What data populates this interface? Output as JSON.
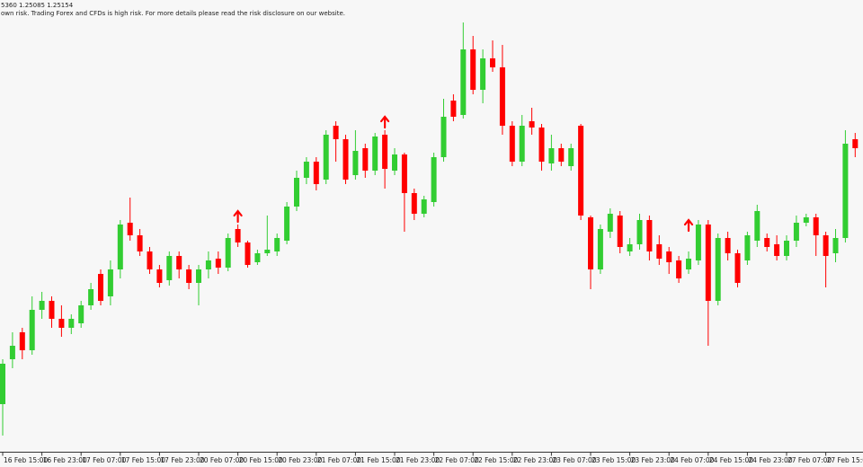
{
  "header_lines": [
    "5360 1.25085 1.25154",
    "own risk. Trading Forex and CFDs is high risk. For more details please read the risk disclosure on our website."
  ],
  "chart_data": {
    "type": "candlestick",
    "up_color": "#32cd32",
    "down_color": "#ff0000",
    "arrow_color": "#ff0000",
    "ylim": [
      1.22,
      1.27
    ],
    "categories": [
      "16 Feb 15:00",
      null,
      null,
      null,
      "16 Feb 23:00",
      null,
      null,
      null,
      "17 Feb 07:00",
      null,
      null,
      null,
      "17 Feb 15:00",
      null,
      null,
      null,
      "17 Feb 23:00",
      null,
      null,
      null,
      "20 Feb 07:00",
      null,
      null,
      null,
      "20 Feb 15:00",
      null,
      null,
      null,
      "20 Feb 23:00",
      null,
      null,
      null,
      "21 Feb 07:00",
      null,
      null,
      null,
      "21 Feb 15:00",
      null,
      null,
      null,
      "21 Feb 23:00",
      null,
      null,
      null,
      "22 Feb 07:00",
      null,
      null,
      null,
      "22 Feb 15:00",
      null,
      null,
      null,
      "22 Feb 23:00",
      null,
      null,
      null,
      "23 Feb 07:00",
      null,
      null,
      null,
      "23 Feb 15:00",
      null,
      null,
      null,
      "23 Feb 23:00",
      null,
      null,
      null,
      "24 Feb 07:00",
      null,
      null,
      null,
      "24 Feb 15:00",
      null,
      null,
      null,
      "24 Feb 23:00",
      null,
      null,
      null,
      "27 Feb 07:00",
      null,
      null,
      null,
      "27 Feb 15:00",
      null,
      null,
      null
    ],
    "open": [
      1.225,
      1.23,
      1.233,
      1.231,
      1.2355,
      1.2365,
      1.2345,
      1.2335,
      1.234,
      1.236,
      1.2395,
      1.237,
      1.24,
      1.2452,
      1.2438,
      1.242,
      1.24,
      1.2388,
      1.2415,
      1.24,
      1.2385,
      1.24,
      1.2412,
      1.2402,
      1.2445,
      1.243,
      1.2408,
      1.2418,
      1.242,
      1.2432,
      1.247,
      1.2502,
      1.252,
      1.25,
      1.256,
      1.2545,
      1.2505,
      1.2535,
      1.251,
      1.255,
      1.251,
      1.2528,
      1.2485,
      1.2462,
      1.2475,
      1.2525,
      1.2588,
      1.2572,
      1.2645,
      1.26,
      1.2635,
      1.2625,
      1.256,
      1.252,
      1.2565,
      1.2558,
      1.2518,
      1.2535,
      1.2515,
      1.256,
      1.2458,
      1.24,
      1.2442,
      1.246,
      1.242,
      1.2428,
      1.2455,
      1.2428,
      1.242,
      1.241,
      1.24,
      1.241,
      1.245,
      1.2365,
      1.2435,
      1.2418,
      1.241,
      1.2432,
      1.2435,
      1.2428,
      1.2415,
      1.2432,
      1.2452,
      1.2458,
      1.2438,
      1.2418,
      1.2435,
      1.2545
    ],
    "high": [
      1.23,
      1.233,
      1.2335,
      1.237,
      1.2375,
      1.237,
      1.236,
      1.235,
      1.2365,
      1.2385,
      1.24,
      1.241,
      1.2455,
      1.248,
      1.2445,
      1.2425,
      1.2405,
      1.242,
      1.242,
      1.2405,
      1.2405,
      1.242,
      1.242,
      1.244,
      1.245,
      1.2432,
      1.2422,
      1.246,
      1.244,
      1.2475,
      1.251,
      1.2525,
      1.2525,
      1.2555,
      1.2565,
      1.255,
      1.2555,
      1.254,
      1.2552,
      1.2555,
      1.2535,
      1.253,
      1.249,
      1.2482,
      1.253,
      1.259,
      1.2595,
      1.2675,
      1.266,
      1.2645,
      1.2655,
      1.265,
      1.2565,
      1.2572,
      1.258,
      1.2562,
      1.255,
      1.254,
      1.254,
      1.2562,
      1.246,
      1.245,
      1.2468,
      1.2465,
      1.2435,
      1.2462,
      1.246,
      1.2438,
      1.2425,
      1.2415,
      1.242,
      1.2455,
      1.2455,
      1.244,
      1.2442,
      1.2422,
      1.2442,
      1.2472,
      1.244,
      1.2438,
      1.2438,
      1.246,
      1.2462,
      1.2462,
      1.2442,
      1.2445,
      1.2555,
      1.2552
    ],
    "low": [
      1.2215,
      1.229,
      1.23,
      1.2305,
      1.2345,
      1.2335,
      1.2325,
      1.2328,
      1.2335,
      1.2355,
      1.236,
      1.236,
      1.239,
      1.2432,
      1.2415,
      1.2395,
      1.238,
      1.2382,
      1.239,
      1.2378,
      1.236,
      1.239,
      1.2395,
      1.2398,
      1.2425,
      1.2402,
      1.2405,
      1.2415,
      1.2415,
      1.2428,
      1.2465,
      1.2495,
      1.2488,
      1.2495,
      1.252,
      1.2495,
      1.25,
      1.2502,
      1.2505,
      1.249,
      1.2505,
      1.2442,
      1.2455,
      1.2458,
      1.247,
      1.252,
      1.2565,
      1.2568,
      1.2595,
      1.2585,
      1.262,
      1.255,
      1.2515,
      1.2515,
      1.255,
      1.251,
      1.251,
      1.2515,
      1.251,
      1.2455,
      1.2378,
      1.2395,
      1.2435,
      1.2418,
      1.2415,
      1.2422,
      1.241,
      1.2405,
      1.2395,
      1.2385,
      1.2395,
      1.2405,
      1.2315,
      1.236,
      1.241,
      1.238,
      1.2405,
      1.2425,
      1.242,
      1.241,
      1.241,
      1.2425,
      1.2448,
      1.2415,
      1.238,
      1.2408,
      1.243,
      1.2525
    ],
    "close": [
      1.2295,
      1.2315,
      1.231,
      1.2355,
      1.2365,
      1.2345,
      1.2335,
      1.2345,
      1.236,
      1.2378,
      1.2365,
      1.24,
      1.245,
      1.2438,
      1.242,
      1.24,
      1.2385,
      1.2415,
      1.24,
      1.2385,
      1.24,
      1.241,
      1.2402,
      1.2435,
      1.243,
      1.2405,
      1.2418,
      1.2422,
      1.2435,
      1.247,
      1.2502,
      1.252,
      1.2495,
      1.255,
      1.2545,
      1.25,
      1.2532,
      1.251,
      1.2548,
      1.2512,
      1.2528,
      1.2485,
      1.2462,
      1.2478,
      1.2525,
      1.257,
      1.257,
      1.2645,
      1.26,
      1.2635,
      1.2625,
      1.256,
      1.252,
      1.256,
      1.2558,
      1.252,
      1.2535,
      1.252,
      1.2535,
      1.246,
      1.24,
      1.2445,
      1.2462,
      1.2425,
      1.2428,
      1.2455,
      1.242,
      1.2412,
      1.2408,
      1.239,
      1.2412,
      1.245,
      1.2365,
      1.2435,
      1.2418,
      1.2385,
      1.2438,
      1.2465,
      1.2425,
      1.2415,
      1.2432,
      1.2452,
      1.2458,
      1.2438,
      1.2415,
      1.2435,
      1.254,
      1.2535
    ],
    "arrows": [
      null,
      null,
      null,
      null,
      null,
      null,
      null,
      null,
      null,
      null,
      null,
      null,
      null,
      null,
      null,
      null,
      null,
      null,
      null,
      null,
      null,
      null,
      null,
      null,
      1.2465,
      null,
      null,
      null,
      null,
      null,
      null,
      null,
      null,
      null,
      null,
      null,
      null,
      null,
      null,
      1.257,
      null,
      null,
      null,
      null,
      null,
      null,
      null,
      null,
      null,
      null,
      null,
      null,
      null,
      null,
      null,
      null,
      null,
      null,
      null,
      null,
      null,
      null,
      null,
      null,
      null,
      null,
      null,
      null,
      null,
      null,
      1.2455,
      null,
      null,
      null,
      null,
      null,
      null,
      null,
      null,
      null,
      null,
      null,
      null,
      null,
      null,
      null,
      null,
      null
    ]
  }
}
